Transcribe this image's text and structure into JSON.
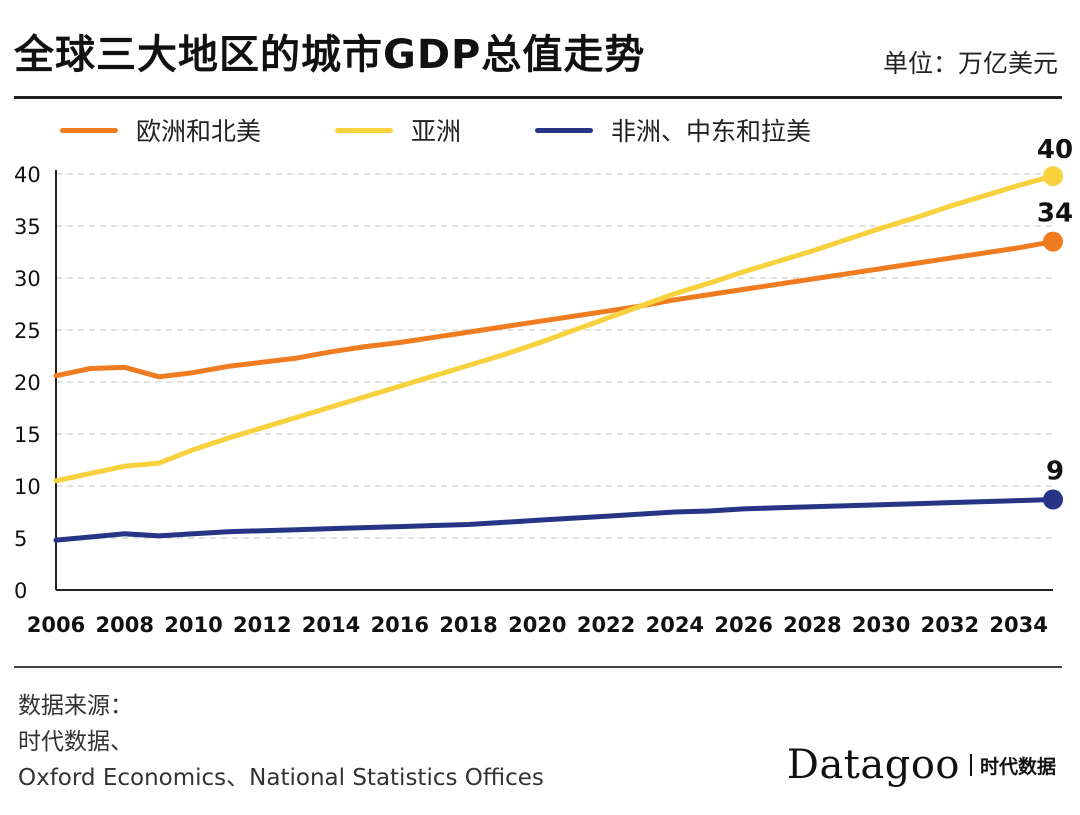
{
  "header": {
    "title": "全球三大地区的城市GDP总值走势",
    "unit": "单位：万亿美元"
  },
  "colors": {
    "eu_na": "#F07C22",
    "asia": "#F7D13E",
    "africa_me_latam": "#263586",
    "grid": "#cfcfcf",
    "axis": "#222222"
  },
  "chart_data": {
    "type": "line",
    "x": [
      2006,
      2007,
      2008,
      2009,
      2010,
      2011,
      2012,
      2013,
      2014,
      2015,
      2016,
      2017,
      2018,
      2019,
      2020,
      2021,
      2022,
      2023,
      2024,
      2025,
      2026,
      2027,
      2028,
      2029,
      2030,
      2031,
      2032,
      2033,
      2034,
      2035
    ],
    "xticks": [
      "2006",
      "2008",
      "2010",
      "2012",
      "2014",
      "2016",
      "2018",
      "2020",
      "2022",
      "2024",
      "2026",
      "2028",
      "2030",
      "2032",
      "2034"
    ],
    "yticks": [
      "0",
      "5",
      "10",
      "15",
      "20",
      "25",
      "30",
      "35",
      "40"
    ],
    "ylim": [
      0,
      40
    ],
    "xlim": [
      2006,
      2035
    ],
    "grid": "horizontal dashed",
    "legend_position": "top",
    "series": [
      {
        "name": "欧洲和北美",
        "color_key": "eu_na",
        "values": [
          20.6,
          21.3,
          21.4,
          20.5,
          20.9,
          21.5,
          21.9,
          22.3,
          22.9,
          23.4,
          23.8,
          24.3,
          24.8,
          25.3,
          25.8,
          26.3,
          26.8,
          27.3,
          27.9,
          28.4,
          28.9,
          29.4,
          29.9,
          30.4,
          30.9,
          31.4,
          31.9,
          32.4,
          32.9,
          33.5
        ],
        "end_label": "34"
      },
      {
        "name": "亚洲",
        "color_key": "asia",
        "values": [
          10.5,
          11.2,
          11.9,
          12.2,
          13.5,
          14.6,
          15.6,
          16.6,
          17.6,
          18.6,
          19.6,
          20.6,
          21.6,
          22.6,
          23.7,
          24.9,
          26.1,
          27.3,
          28.5,
          29.5,
          30.6,
          31.6,
          32.6,
          33.7,
          34.8,
          35.8,
          36.9,
          37.9,
          38.9,
          39.8
        ],
        "end_label": "40"
      },
      {
        "name": "非洲、中东和拉美",
        "color_key": "africa_me_latam",
        "values": [
          4.8,
          5.1,
          5.4,
          5.2,
          5.4,
          5.6,
          5.7,
          5.8,
          5.9,
          6.0,
          6.1,
          6.2,
          6.3,
          6.5,
          6.7,
          6.9,
          7.1,
          7.3,
          7.5,
          7.6,
          7.8,
          7.9,
          8.0,
          8.1,
          8.2,
          8.3,
          8.4,
          8.5,
          8.6,
          8.7
        ],
        "end_label": "9"
      }
    ]
  },
  "source": {
    "heading": "数据来源：",
    "line1": "时代数据、",
    "line2": "Oxford Economics、National Statistics Offices"
  },
  "brand": {
    "name": "Datagoo",
    "cn": "时代数据"
  }
}
